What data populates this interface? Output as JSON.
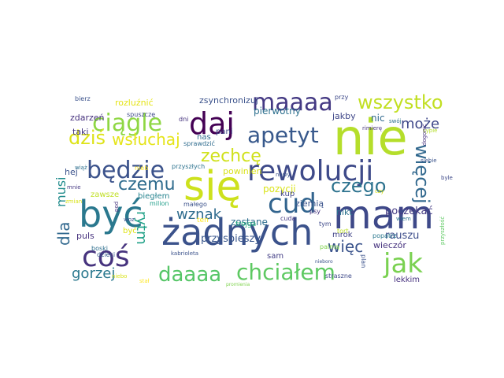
{
  "wordcloud": {
    "words": [
      {
        "text": "nie",
        "color": "#b5de2b"
      },
      {
        "text": "mam",
        "color": "#3e4989"
      },
      {
        "text": "się",
        "color": "#cde11d"
      },
      {
        "text": "żadnych",
        "color": "#3b528b"
      },
      {
        "text": "być",
        "color": "#2a788e"
      },
      {
        "text": "rewolucji",
        "color": "#3e4a89"
      },
      {
        "text": "daj",
        "color": "#440154"
      },
      {
        "text": "coś",
        "color": "#46337e"
      },
      {
        "text": "cud",
        "color": "#32648e"
      },
      {
        "text": "maaaa",
        "color": "#443983"
      },
      {
        "text": "ciągle",
        "color": "#8fd744"
      },
      {
        "text": "będzie",
        "color": "#3b528b"
      },
      {
        "text": "jak",
        "color": "#7ad151"
      },
      {
        "text": "chciałem",
        "color": "#5ec962"
      },
      {
        "text": "apetyt",
        "color": "#38598c"
      },
      {
        "text": "więcej",
        "color": "#31688e"
      },
      {
        "text": "wszystko",
        "color": "#c2df23"
      },
      {
        "text": "daaaa",
        "color": "#56c667"
      },
      {
        "text": "czego",
        "color": "#2c728e"
      },
      {
        "text": "zechcę",
        "color": "#d0e11c"
      },
      {
        "text": "dziś",
        "color": "#dde318"
      },
      {
        "text": "czemu",
        "color": "#2f6c8e"
      },
      {
        "text": "dla",
        "color": "#31688e"
      },
      {
        "text": "gorzej",
        "color": "#2a788e"
      },
      {
        "text": "musi",
        "color": "#228c8d"
      },
      {
        "text": "wznak",
        "color": "#2f6c8e"
      },
      {
        "text": "więc",
        "color": "#3a538b"
      },
      {
        "text": "może",
        "color": "#3f4889"
      },
      {
        "text": "wsłuchaj",
        "color": "#e5e419"
      },
      {
        "text": "rytm",
        "color": "#1fa187"
      },
      {
        "text": "zostanę",
        "color": "#2e6e8e"
      },
      {
        "text": "przyspieszy",
        "color": "#39568c"
      },
      {
        "text": "pozycji",
        "color": "#dae319"
      },
      {
        "text": "wieczór",
        "color": "#46327e"
      },
      {
        "text": "rauszu",
        "color": "#3d4d8a"
      },
      {
        "text": "poczekać",
        "color": "#443a83"
      },
      {
        "text": "powinien",
        "color": "#d8e219"
      },
      {
        "text": "pierwotny",
        "color": "#2d708e"
      },
      {
        "text": "jakby",
        "color": "#3f4788"
      },
      {
        "text": "zsynchronizuj",
        "color": "#3b528b"
      },
      {
        "text": "rozluźnić",
        "color": "#e5e419"
      },
      {
        "text": "zdarzeń",
        "color": "#46317e"
      },
      {
        "text": "taki",
        "color": "#453781"
      },
      {
        "text": "hej",
        "color": "#3b528b"
      },
      {
        "text": "zawsze",
        "color": "#c0df25"
      },
      {
        "text": "biegłem",
        "color": "#25838e"
      },
      {
        "text": "puls",
        "color": "#46327e"
      },
      {
        "text": "sam",
        "color": "#433e85"
      },
      {
        "text": "nikt",
        "color": "#2c728e"
      },
      {
        "text": "ziemią",
        "color": "#3a548c"
      },
      {
        "text": "kup",
        "color": "#404588"
      },
      {
        "text": "pani",
        "color": "#3e4989"
      },
      {
        "text": "nic",
        "color": "#30698e"
      },
      {
        "text": "mrok",
        "color": "#414487"
      },
      {
        "text": "lekkim",
        "color": "#46307e"
      },
      {
        "text": "psy",
        "color": "#46337e"
      },
      {
        "text": "tym",
        "color": "#3e4989"
      },
      {
        "text": "nas",
        "color": "#2f6b8e"
      },
      {
        "text": "ten",
        "color": "#fde725"
      },
      {
        "text": "trojga",
        "color": "#2ab07f"
      },
      {
        "text": "być",
        "color": "#dfe318"
      },
      {
        "text": "boski",
        "color": "#2e6f8e"
      },
      {
        "text": "dzieci",
        "color": "#38598c"
      },
      {
        "text": "palmą",
        "color": "#7fd34e"
      },
      {
        "text": "plan",
        "color": "#3b528b"
      },
      {
        "text": "straszne",
        "color": "#3e4989"
      },
      {
        "text": "tort",
        "color": "#bddf26"
      },
      {
        "text": "popatrz",
        "color": "#2a788e"
      },
      {
        "text": "nieb",
        "color": "#fde725"
      },
      {
        "text": "cuda",
        "color": "#443983"
      },
      {
        "text": "milion",
        "color": "#1f9e89"
      },
      {
        "text": "małego",
        "color": "#3b528b"
      },
      {
        "text": "przyszłych",
        "color": "#2c728e"
      },
      {
        "text": "sprawdzić",
        "color": "#2f6c8e"
      },
      {
        "text": "spuszczę",
        "color": "#3e4989"
      },
      {
        "text": "dni",
        "color": "#46337e"
      },
      {
        "text": "bierz",
        "color": "#3b528b"
      },
      {
        "text": "wiąż",
        "color": "#2d708e"
      },
      {
        "text": "mnie",
        "color": "#453882"
      },
      {
        "text": "zmian",
        "color": "#d8e219"
      },
      {
        "text": "nowy",
        "color": "#3b528b"
      },
      {
        "text": "rimierę",
        "color": "#46337e"
      },
      {
        "text": "przy",
        "color": "#3e4989"
      },
      {
        "text": "swój",
        "color": "#2c728e"
      },
      {
        "text": "sypie",
        "color": "#b5de2b"
      },
      {
        "text": "siebie",
        "color": "#3b528b"
      },
      {
        "text": "dogonić",
        "color": "#46307e"
      },
      {
        "text": "byle",
        "color": "#3e4989"
      },
      {
        "text": "przyszłość",
        "color": "#5ec962"
      },
      {
        "text": "kabrioleta",
        "color": "#3b528b"
      },
      {
        "text": "nieboro",
        "color": "#3b528b"
      },
      {
        "text": "czy",
        "color": "#dde318"
      },
      {
        "text": "wiem",
        "color": "#2c728e"
      },
      {
        "text": "pod",
        "color": "#46337e"
      },
      {
        "text": "woz",
        "color": "#3b528b"
      },
      {
        "text": "stał",
        "color": "#fde725"
      },
      {
        "text": "niebo",
        "color": "#d8e219"
      },
      {
        "text": "promienia",
        "color": "#7fd34e"
      }
    ]
  }
}
